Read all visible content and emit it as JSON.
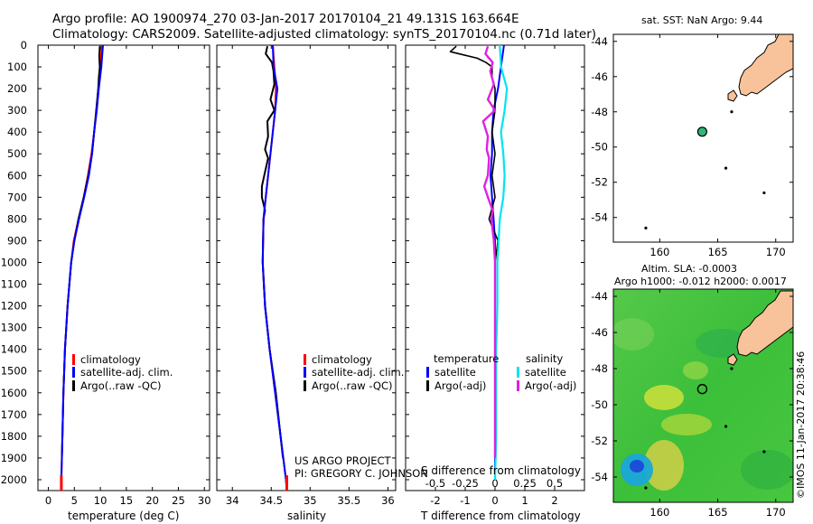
{
  "header": {
    "line1": "Argo profile: AO 1900974_270 03-Jan-2017 20170104_21 49.131S 163.664E",
    "line2": "Climatology: CARS2009. Satellite-adjusted climatology: synTS_20170104.nc (0.71d later)"
  },
  "colors": {
    "climatology": "#ff0000",
    "satellite": "#0000ff",
    "argo": "#000000",
    "sal_satellite": "#00e5ee",
    "sal_argo": "#e020e0",
    "land": "#f8c39a"
  },
  "chart_data": [
    {
      "type": "line",
      "id": "temperature",
      "xlabel": "temperature (deg C)",
      "ylabel": "",
      "xlim": [
        -2,
        31
      ],
      "ylim": [
        2050,
        0
      ],
      "xticks": [
        0,
        5,
        10,
        15,
        20,
        25,
        30
      ],
      "yticks": [
        0,
        100,
        200,
        300,
        400,
        500,
        600,
        700,
        800,
        900,
        1000,
        1100,
        1200,
        1300,
        1400,
        1500,
        1600,
        1700,
        1800,
        1900,
        2000
      ],
      "legend": [
        "climatology",
        "satellite-adj. clim.",
        "Argo(..raw -QC)"
      ],
      "series": [
        {
          "name": "climatology",
          "depth": [
            0,
            100,
            200,
            300,
            400,
            500,
            600,
            700,
            800,
            900,
            1000,
            1200,
            1400,
            1600,
            1800,
            2000,
            2050
          ],
          "values": [
            10.3,
            10.0,
            9.6,
            9.3,
            8.8,
            8.3,
            7.6,
            6.8,
            5.8,
            4.9,
            4.4,
            3.7,
            3.2,
            2.9,
            2.7,
            2.5,
            2.5
          ]
        },
        {
          "name": "satellite-adj. clim.",
          "depth": [
            0,
            100,
            200,
            300,
            400,
            500,
            600,
            700,
            800,
            900,
            1000,
            1200,
            1400,
            1600,
            1800,
            2000,
            2050
          ],
          "values": [
            10.5,
            10.2,
            9.7,
            9.3,
            8.8,
            8.4,
            7.8,
            6.9,
            5.9,
            5.0,
            4.4,
            3.7,
            3.2,
            2.9,
            2.7,
            2.5,
            2.5
          ]
        },
        {
          "name": "Argo(..raw -QC)",
          "depth": [
            5,
            50,
            100,
            150,
            200,
            300,
            400,
            500,
            600,
            700,
            800,
            900,
            1000,
            1200,
            1400,
            1600,
            1800,
            1900
          ],
          "values": [
            9.9,
            9.8,
            9.9,
            9.7,
            9.6,
            9.2,
            8.8,
            8.4,
            7.7,
            6.8,
            5.8,
            5.0,
            4.4,
            3.7,
            3.2,
            2.9,
            2.7,
            2.6
          ]
        }
      ]
    },
    {
      "type": "line",
      "id": "salinity",
      "xlabel": "salinity",
      "ylabel": "",
      "xlim": [
        33.8,
        36.1
      ],
      "ylim": [
        2050,
        0
      ],
      "xticks": [
        34,
        34.5,
        35,
        35.5,
        36
      ],
      "legend": [
        "climatology",
        "satellite-adj. clim.",
        "Argo(..raw -QC)"
      ],
      "series": [
        {
          "name": "climatology",
          "depth": [
            0,
            100,
            200,
            300,
            400,
            500,
            600,
            700,
            800,
            1000,
            1200,
            1400,
            1600,
            1800,
            2000,
            2050
          ],
          "values": [
            34.52,
            34.54,
            34.56,
            34.55,
            34.52,
            34.49,
            34.46,
            34.43,
            34.4,
            34.39,
            34.42,
            34.48,
            34.55,
            34.62,
            34.69,
            34.7
          ]
        },
        {
          "name": "satellite-adj. clim.",
          "depth": [
            0,
            100,
            200,
            300,
            400,
            500,
            600,
            700,
            800,
            1000,
            1200,
            1400,
            1600,
            1800,
            2000,
            2050
          ],
          "values": [
            34.52,
            34.53,
            34.58,
            34.55,
            34.52,
            34.49,
            34.46,
            34.43,
            34.4,
            34.39,
            34.42,
            34.48,
            34.55,
            34.62,
            34.69,
            34.7
          ]
        },
        {
          "name": "Argo(..raw -QC)",
          "depth": [
            5,
            40,
            80,
            120,
            180,
            250,
            300,
            350,
            420,
            480,
            520,
            600,
            650,
            700,
            760,
            800,
            1000,
            1200,
            1400,
            1600,
            1800,
            1900
          ],
          "values": [
            34.45,
            34.43,
            34.51,
            34.53,
            34.54,
            34.49,
            34.54,
            34.45,
            34.46,
            34.42,
            34.46,
            34.41,
            34.38,
            34.38,
            34.42,
            34.4,
            34.39,
            34.42,
            34.48,
            34.56,
            34.62,
            34.65
          ]
        }
      ]
    },
    {
      "type": "line",
      "id": "difference",
      "xlabel": "T difference from climatology",
      "xlabel2": "S difference from climatology",
      "xlim": [
        -3,
        3
      ],
      "ylim": [
        2050,
        0
      ],
      "xticks": [
        -2,
        -1,
        0,
        1,
        2
      ],
      "xtick_labels": [
        "-2",
        "-1",
        "0",
        "1",
        "2"
      ],
      "xticks2": [
        -0.5,
        -0.25,
        0,
        0.25,
        0.5
      ],
      "xtick2_labels": [
        "-0.5",
        "-0.25",
        "0",
        "0.25",
        "0.5"
      ],
      "legend_left_title": "temperature",
      "legend_right_title": "salinity",
      "legend_left": [
        "satellite",
        "Argo(-adj)"
      ],
      "legend_right": [
        "satellite",
        "Argo(-adj)"
      ],
      "series": [
        {
          "name": "T satellite",
          "depth": [
            0,
            100,
            200,
            300,
            400,
            500,
            600,
            700,
            800,
            900,
            1000,
            1200,
            1400,
            1600,
            1800,
            2000
          ],
          "values": [
            0.3,
            0.2,
            0.1,
            -0.05,
            -0.1,
            -0.1,
            -0.15,
            -0.1,
            -0.05,
            0,
            0,
            0,
            0,
            0,
            0,
            0
          ]
        },
        {
          "name": "T Argo(-adj)",
          "depth": [
            5,
            30,
            60,
            80,
            100,
            150,
            200,
            300,
            400,
            500,
            600,
            700,
            800,
            900,
            1000,
            1200,
            1400,
            1600,
            1800,
            1900
          ],
          "values": [
            -1.3,
            -1.5,
            -0.6,
            -0.3,
            -0.1,
            -0.1,
            0,
            0,
            -0.1,
            0,
            -0.1,
            0,
            -0.2,
            0.1,
            0,
            0,
            0,
            0,
            0,
            0
          ]
        },
        {
          "name": "S satellite",
          "depth": [
            0,
            100,
            200,
            300,
            400,
            500,
            600,
            700,
            800,
            1000,
            1200,
            1400,
            1600,
            1800,
            2000
          ],
          "values": [
            0.04,
            0.05,
            0.1,
            0.08,
            0.05,
            0.07,
            0.08,
            0.07,
            0.04,
            0.02,
            0.02,
            0.01,
            0.01,
            0.01,
            0.0
          ]
        },
        {
          "name": "S Argo(-adj)",
          "depth": [
            5,
            40,
            80,
            120,
            180,
            250,
            300,
            350,
            420,
            480,
            520,
            600,
            650,
            700,
            760,
            800,
            900,
            1000,
            1200,
            1400,
            1600,
            1800,
            1900
          ],
          "values": [
            -0.06,
            -0.08,
            -0.02,
            -0.04,
            -0.01,
            -0.06,
            0,
            -0.1,
            -0.06,
            -0.07,
            -0.05,
            -0.06,
            -0.09,
            -0.06,
            -0.02,
            -0.03,
            -0.01,
            0,
            0,
            0,
            0,
            0,
            0
          ]
        }
      ]
    }
  ],
  "maps": {
    "sst": {
      "title": "sat. SST: NaN Argo: 9.44",
      "xticks": [
        "160",
        "165",
        "170"
      ],
      "yticks": [
        "-44",
        "-46",
        "-48",
        "-50",
        "-52",
        "-54"
      ],
      "argo_lon": 163.664,
      "argo_lat": -49.131
    },
    "sla": {
      "title1": "Altim. SLA: -0.0003",
      "title2": "Argo h1000: -0.012 h2000: 0.0017",
      "xticks": [
        "160",
        "165",
        "170"
      ],
      "yticks": [
        "-44",
        "-46",
        "-48",
        "-50",
        "-52",
        "-54"
      ]
    }
  },
  "annotations": {
    "project_line1": "US ARGO PROJECT",
    "project_line2": "PI: GREGORY C. JOHNSON",
    "credit": "©IMOS 11-Jan-2017 20:38:46"
  }
}
